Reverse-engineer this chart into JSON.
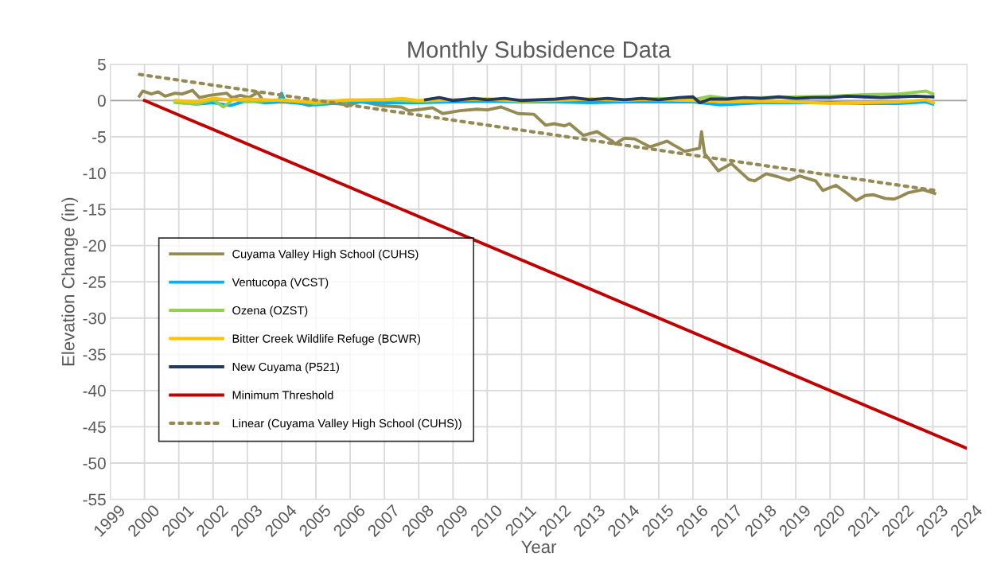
{
  "chart_data": {
    "type": "line",
    "title": "Monthly Subsidence Data",
    "xlabel": "Year",
    "ylabel": "Elevation Change (in)",
    "xlim": [
      1999,
      2024
    ],
    "xticks": [
      1999,
      2000,
      2001,
      2002,
      2003,
      2004,
      2005,
      2006,
      2007,
      2008,
      2009,
      2010,
      2011,
      2012,
      2013,
      2014,
      2015,
      2016,
      2017,
      2018,
      2019,
      2020,
      2021,
      2022,
      2023,
      2024
    ],
    "ylim": [
      -55,
      5
    ],
    "yticks": [
      -55,
      -50,
      -45,
      -40,
      -35,
      -30,
      -25,
      -20,
      -15,
      -10,
      -5,
      0,
      5
    ],
    "grid": true,
    "legend": "bottom left",
    "line_style": "solid",
    "marker": "none",
    "series": [
      {
        "name": "Cuyama Valley High School (CUHS)",
        "color": "#948a54",
        "x": [
          1999.85,
          1999.95,
          2000.2,
          2000.4,
          2000.6,
          2000.9,
          2001.1,
          2001.4,
          2001.6,
          2001.9,
          2002.4,
          2002.55,
          2002.8,
          2003.05,
          2003.3,
          2003.5,
          2004.0,
          2004.5,
          2004.8,
          2005.2,
          2005.8,
          2005.9,
          2006.3,
          2006.5,
          2006.9,
          2007.5,
          2007.7,
          2008.1,
          2008.4,
          2008.7,
          2009.2,
          2009.7,
          2010.0,
          2010.4,
          2010.9,
          2011.36,
          2011.7,
          2011.95,
          2012.25,
          2012.4,
          2012.8,
          2013.2,
          2013.65,
          2013.73,
          2014.0,
          2014.3,
          2014.75,
          2015.25,
          2015.42,
          2015.76,
          2016.19,
          2016.25,
          2016.34,
          2016.74,
          2017.12,
          2017.63,
          2017.8,
          2018.14,
          2018.47,
          2018.81,
          2019.11,
          2019.58,
          2019.79,
          2020.17,
          2020.5,
          2020.76,
          2021.02,
          2021.27,
          2021.61,
          2021.86,
          2022.03,
          2022.29,
          2022.71,
          2023.05
        ],
        "values": [
          0.6,
          1.3,
          0.9,
          1.2,
          0.6,
          1.0,
          0.9,
          1.4,
          0.4,
          0.7,
          1.0,
          0.4,
          0.7,
          0.4,
          1.1,
          -0.3,
          -0.2,
          -0.3,
          -0.7,
          -0.3,
          -0.5,
          -0.8,
          -0.1,
          -0.3,
          -0.7,
          -0.9,
          -1.4,
          -1.2,
          -1.0,
          -1.8,
          -1.4,
          -1.2,
          -1.3,
          -0.9,
          -1.8,
          -1.9,
          -3.4,
          -3.2,
          -3.5,
          -3.2,
          -4.8,
          -4.3,
          -5.6,
          -6.0,
          -5.2,
          -5.3,
          -6.4,
          -5.6,
          -6.1,
          -7.0,
          -6.6,
          -4.3,
          -7.3,
          -9.7,
          -8.7,
          -10.9,
          -11.1,
          -10.1,
          -10.5,
          -11.0,
          -10.4,
          -11.1,
          -12.4,
          -11.7,
          -12.8,
          -13.8,
          -13.1,
          -13.0,
          -13.5,
          -13.6,
          -13.3,
          -12.7,
          -12.3,
          -12.8
        ]
      },
      {
        "name": "Ventucopa (VCST)",
        "color": "#00b0f0",
        "x": [
          2000.9,
          2001.5,
          2002.0,
          2002.5,
          2003.0,
          2003.5,
          2003.9,
          2004.0,
          2004.1,
          2005.0,
          2006.0,
          2007.0,
          2008.0,
          2009.0,
          2010.0,
          2011.0,
          2012.0,
          2013.0,
          2014.0,
          2015.0,
          2016.0,
          2016.8,
          2018.0,
          2019.0,
          2020.0,
          2021.0,
          2022.0,
          2022.8,
          2023.0
        ],
        "values": [
          -0.2,
          -0.5,
          -0.3,
          -0.7,
          0.0,
          -0.3,
          -0.2,
          1.0,
          -0.2,
          -0.6,
          -0.2,
          -0.3,
          -0.3,
          -0.2,
          -0.1,
          -0.2,
          -0.2,
          -0.3,
          -0.2,
          -0.2,
          -0.2,
          -0.6,
          -0.3,
          -0.3,
          -0.3,
          -0.4,
          -0.4,
          -0.2,
          -0.5
        ]
      },
      {
        "name": "Ozena (OZST)",
        "color": "#92d050",
        "x": [
          2000.9,
          2001.5,
          2002.0,
          2002.3,
          2002.6,
          2003.0,
          2004.0,
          2005.0,
          2006.0,
          2007.0,
          2008.0,
          2009.0,
          2010.0,
          2011.0,
          2012.0,
          2013.0,
          2014.0,
          2015.0,
          2016.0,
          2016.5,
          2017.0,
          2018.0,
          2019.0,
          2020.0,
          2021.0,
          2022.0,
          2022.8,
          2023.0
        ],
        "values": [
          -0.3,
          -0.5,
          0.1,
          -0.9,
          0.2,
          -0.2,
          0.1,
          -0.4,
          0.0,
          0.1,
          -0.1,
          0.1,
          0.2,
          -0.1,
          0.0,
          0.2,
          0.0,
          0.3,
          0.1,
          0.6,
          0.3,
          0.4,
          0.5,
          0.6,
          0.8,
          0.9,
          1.3,
          0.9
        ]
      },
      {
        "name": "Bitter Creek Wildlife Refuge (BCWR)",
        "color": "#ffc000",
        "x": [
          2000.9,
          2001.5,
          2002.0,
          2002.5,
          2003.0,
          2004.0,
          2005.0,
          2006.0,
          2007.0,
          2007.5,
          2008.0,
          2009.0,
          2010.0,
          2011.0,
          2012.0,
          2013.0,
          2014.0,
          2015.0,
          2016.0,
          2017.0,
          2018.0,
          2019.0,
          2020.0,
          2021.0,
          2022.0,
          2022.8,
          2023.0
        ],
        "values": [
          0.0,
          -0.2,
          0.3,
          0.1,
          0.2,
          0.0,
          -0.2,
          0.1,
          0.1,
          0.3,
          0.0,
          0.1,
          0.2,
          0.0,
          0.1,
          0.2,
          0.1,
          0.1,
          0.0,
          -0.2,
          -0.1,
          -0.2,
          -0.4,
          -0.3,
          -0.2,
          0.1,
          -0.3
        ]
      },
      {
        "name": "New Cuyama (P521)",
        "color": "#1f3864",
        "x": [
          2008.2,
          2008.6,
          2009.0,
          2009.6,
          2010.0,
          2010.5,
          2011.0,
          2011.5,
          2012.0,
          2012.5,
          2013.0,
          2013.5,
          2014.0,
          2014.5,
          2015.0,
          2015.6,
          2016.0,
          2016.2,
          2016.5,
          2017.0,
          2017.5,
          2018.0,
          2018.5,
          2019.0,
          2019.5,
          2020.0,
          2020.5,
          2021.0,
          2021.5,
          2022.0,
          2022.5,
          2023.0
        ],
        "values": [
          0.1,
          0.4,
          0.0,
          0.3,
          0.1,
          0.3,
          0.0,
          0.1,
          0.2,
          0.4,
          0.1,
          0.3,
          0.1,
          0.3,
          0.1,
          0.4,
          0.5,
          -0.3,
          0.2,
          0.2,
          0.4,
          0.3,
          0.5,
          0.3,
          0.4,
          0.4,
          0.6,
          0.5,
          0.4,
          0.5,
          0.6,
          0.5
        ]
      },
      {
        "name": "Minimum Threshold",
        "color": "#c00000",
        "x": [
          2000,
          2024
        ],
        "values": [
          0,
          -48
        ]
      },
      {
        "name": "Linear (Cuyama Valley High School (CUHS))",
        "color": "#948a54",
        "line_style": "dotted",
        "x": [
          1999.85,
          2023.05
        ],
        "values": [
          3.6,
          -12.4
        ]
      }
    ]
  }
}
